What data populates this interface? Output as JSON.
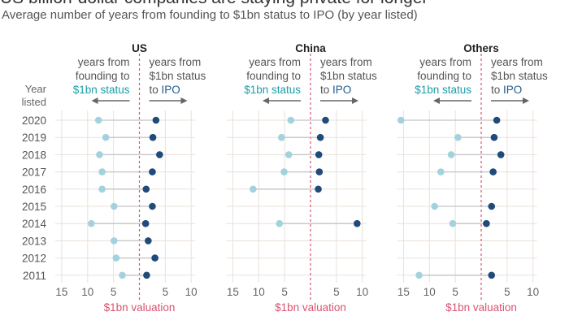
{
  "title": "US billion-dollar companies are staying private for longer",
  "subtitle": "Average number of years from founding to $1bn status to IPO (by year listed)",
  "year_label": [
    "Year",
    "listed"
  ],
  "left_annotation": [
    "years from",
    "founding to",
    "$1bn status"
  ],
  "right_annotation": [
    "years from",
    "$1bn status",
    "to ",
    "IPO"
  ],
  "reference_label": "$1bn valuation",
  "colors": {
    "founding": "#a3d2de",
    "ipo": "#1f4a79",
    "reference": "#d9536f",
    "teal_text": "#1b9ea9",
    "ipo_text": "#1f5a8c",
    "grid": "#e9e0da",
    "connector": "#c4c4c4"
  },
  "chart_data": [
    {
      "type": "dot-range",
      "title": "US",
      "x_tick_labels": [
        "15",
        "10",
        "5",
        "5",
        "10"
      ],
      "xlim": [
        -15,
        10
      ],
      "years": [
        2020,
        2019,
        2018,
        2017,
        2016,
        2015,
        2014,
        2013,
        2012,
        2011
      ],
      "founding_to_1bn": [
        7.9,
        6.5,
        7.7,
        7.2,
        7.2,
        4.9,
        9.3,
        4.9,
        4.5,
        3.3
      ],
      "1bn_to_ipo": [
        3.2,
        2.6,
        3.9,
        2.5,
        1.3,
        2.5,
        1.2,
        1.7,
        3.0,
        1.4
      ]
    },
    {
      "type": "dot-range",
      "title": "China",
      "x_tick_labels": [
        "15",
        "10",
        "5",
        "5",
        "10"
      ],
      "xlim": [
        -15,
        10
      ],
      "years": [
        2020,
        2019,
        2018,
        2017,
        2016,
        2015,
        2014,
        2013,
        2012,
        2011
      ],
      "founding_to_1bn": [
        3.8,
        5.6,
        4.2,
        5.1,
        11.1,
        null,
        6.0,
        null,
        null,
        null
      ],
      "1bn_to_ipo": [
        2.9,
        1.9,
        1.6,
        1.7,
        1.5,
        null,
        9.0,
        null,
        null,
        null
      ]
    },
    {
      "type": "dot-range",
      "title": "Others",
      "x_tick_labels": [
        "15",
        "10",
        "5",
        "5",
        "10"
      ],
      "xlim": [
        -15,
        10
      ],
      "years": [
        2020,
        2019,
        2018,
        2017,
        2016,
        2015,
        2014,
        2013,
        2012,
        2011
      ],
      "founding_to_1bn": [
        15.5,
        4.5,
        5.8,
        7.8,
        null,
        9.0,
        5.5,
        null,
        null,
        12.0
      ],
      "1bn_to_ipo": [
        3.0,
        2.5,
        3.8,
        2.3,
        null,
        2.0,
        1.0,
        null,
        null,
        2.0
      ]
    }
  ]
}
